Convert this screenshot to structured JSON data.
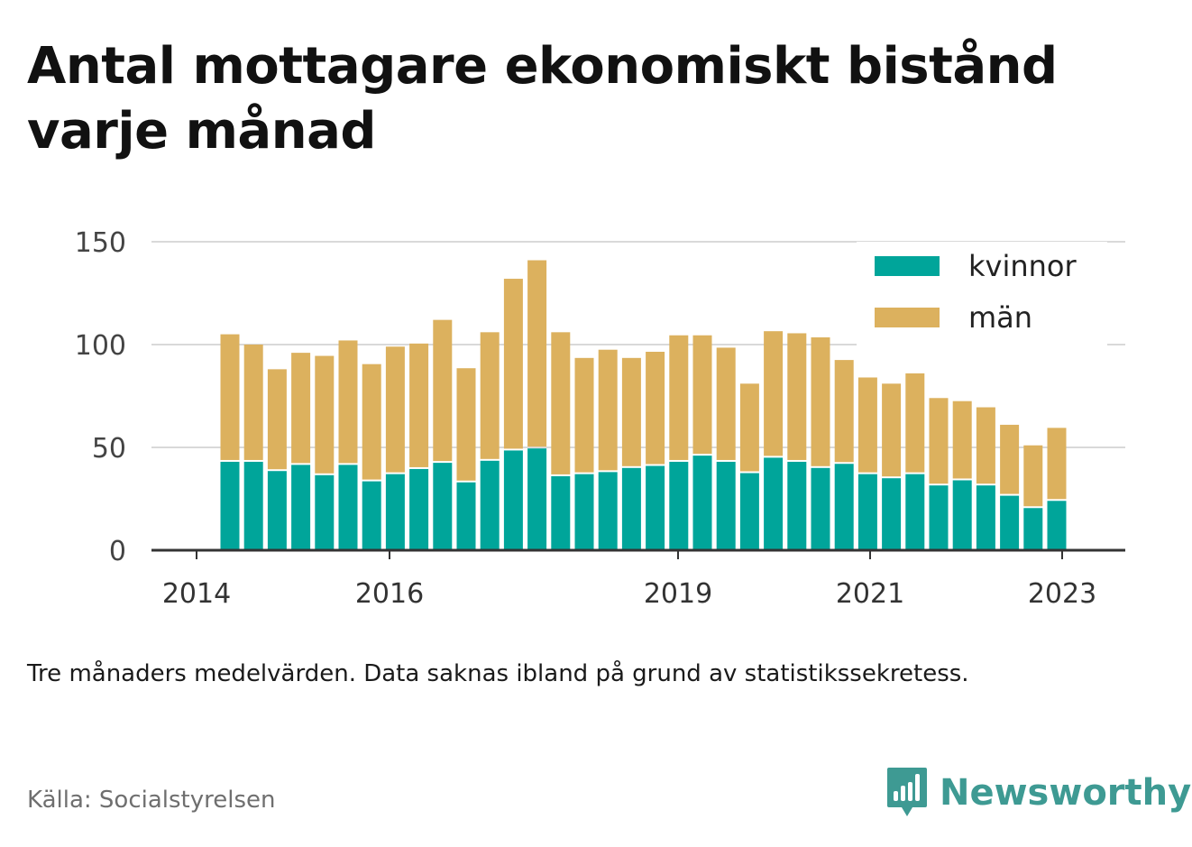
{
  "title": "Antal mottagare ekonomiskt bistånd varje månad",
  "subtitle": "Tre månaders medelvärden. Data saknas ibland på grund av statistikssekretess.",
  "source": "Källa: Socialstyrelsen",
  "brand": {
    "name": "Newsworthy",
    "color": "#3e9a93",
    "icon": "bar-chart-icon"
  },
  "colors": {
    "kvinnor": "#00a59a",
    "man": "#dcb15e",
    "grid": "#d9d9d9",
    "axis": "#333333"
  },
  "chart_data": {
    "type": "bar",
    "stacked": true,
    "x_ticks": [
      "2014",
      "2016",
      "2019",
      "2021",
      "2023"
    ],
    "y_ticks": [
      0,
      50,
      100,
      150
    ],
    "ylim": [
      0,
      150
    ],
    "grid": true,
    "legend_position": "top-right",
    "series": [
      {
        "name": "kvinnor",
        "values": [
          43,
          43,
          38.5,
          41.5,
          36.5,
          41.5,
          33.5,
          37,
          39.5,
          42.5,
          33,
          43.5,
          48.5,
          49.5,
          36,
          37,
          38,
          40,
          41,
          43,
          46,
          43,
          37.5,
          45,
          43,
          40,
          42,
          37,
          35,
          37,
          31.5,
          34,
          31.5,
          26.5,
          20.5,
          24
        ]
      },
      {
        "name": "män",
        "values": [
          62,
          57,
          49.5,
          54.5,
          58,
          60.5,
          57,
          62,
          61,
          69.5,
          55.5,
          62.5,
          83.5,
          91.5,
          70,
          56.5,
          59.5,
          53.5,
          55.5,
          61.5,
          58.5,
          55.5,
          43.5,
          61.5,
          62.5,
          63.5,
          50.5,
          47,
          46,
          49,
          42.5,
          38.5,
          38,
          34.5,
          30.5,
          35.5
        ]
      }
    ]
  }
}
